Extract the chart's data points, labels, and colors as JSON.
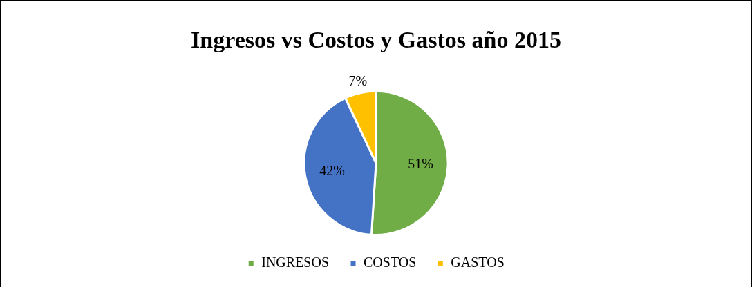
{
  "chart_data": {
    "type": "pie",
    "title": "Ingresos vs Costos y Gastos año 2015",
    "categories": [
      "INGRESOS",
      "COSTOS",
      "GASTOS"
    ],
    "values": [
      51,
      42,
      7
    ],
    "colors": [
      "#70ad47",
      "#4472c4",
      "#ffc000"
    ],
    "value_labels": [
      "51%",
      "42%",
      "7%"
    ],
    "legend": "bottom"
  }
}
